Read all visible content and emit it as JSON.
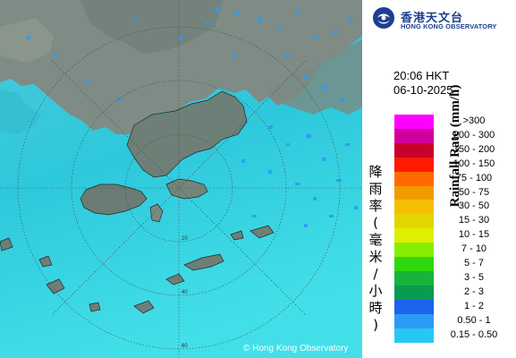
{
  "org": {
    "name_cn": "香港天文台",
    "name_en": "HONG KONG OBSERVATORY",
    "logo_icon": "hko-logo-icon"
  },
  "timestamp": {
    "time": "20:06 HKT",
    "date": "06-10-2025"
  },
  "legend": {
    "title_cn": [
      "降",
      "雨",
      "率",
      "(",
      "毫",
      "米",
      "/",
      "小",
      "時",
      ")"
    ],
    "title_en": "Rainfall Rate (mm/h)",
    "items": [
      {
        "label": ">300",
        "color": "#ff00ff"
      },
      {
        "label": "200 - 300",
        "color": "#d1009c"
      },
      {
        "label": "150 - 200",
        "color": "#c8002d"
      },
      {
        "label": "100 - 150",
        "color": "#ff1a00"
      },
      {
        "label": "75 - 100",
        "color": "#ff6a00"
      },
      {
        "label": "50 - 75",
        "color": "#f39a00"
      },
      {
        "label": "30 - 50",
        "color": "#f5be00"
      },
      {
        "label": "15 - 30",
        "color": "#e3d500"
      },
      {
        "label": "10 - 15",
        "color": "#ddf000"
      },
      {
        "label": "7 - 10",
        "color": "#88ee00"
      },
      {
        "label": "5 - 7",
        "color": "#2fd80d"
      },
      {
        "label": "3 - 5",
        "color": "#17b43c"
      },
      {
        "label": "2 - 3",
        "color": "#0a9a52"
      },
      {
        "label": "1 - 2",
        "color": "#1d63ee"
      },
      {
        "label": "0.50 - 1",
        "color": "#2c9bf5"
      },
      {
        "label": "0.15 - 0.50",
        "color": "#25c8f5"
      }
    ]
  },
  "map": {
    "range_rings": [
      "20",
      "40",
      "60"
    ],
    "sea_color": "#2bc3d8",
    "land_color": "#7d8c86"
  },
  "copyright": "© Hong Kong Observatory"
}
